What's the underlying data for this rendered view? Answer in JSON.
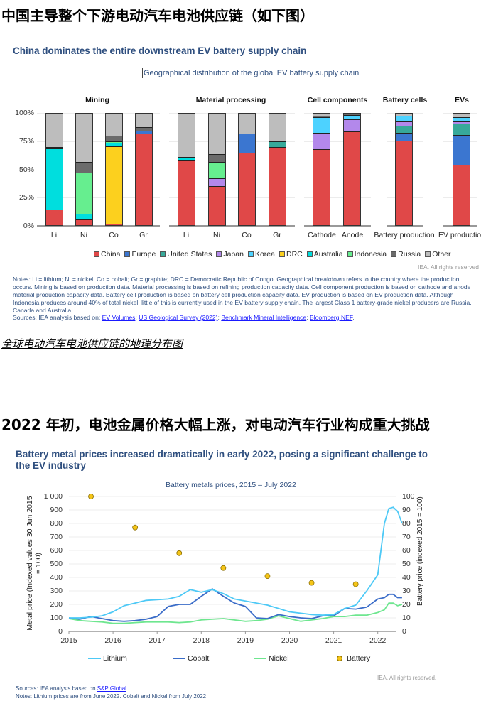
{
  "headings": {
    "section1_cn": "中国主导整个下游电动汽车电池供应链（如下图）",
    "caption1_cn": "全球电动汽车电池供应链的地理分布图",
    "section2_cn": "2022 年初，电池金属价格大幅上涨，对电动汽车行业构成重大挑战"
  },
  "chart1": {
    "title": "China dominates the entire downstream EV battery supply chain",
    "subtitle": "Geographical distribution of the global EV battery supply chain",
    "y_ticks": [
      "100%",
      "75%",
      "50%",
      "25%",
      "0%"
    ],
    "groups": [
      "Mining",
      "Material processing",
      "Cell components",
      "Battery cells",
      "EVs"
    ],
    "legend": [
      {
        "label": "China",
        "color": "#e04848"
      },
      {
        "label": "Europe",
        "color": "#3b76d0"
      },
      {
        "label": "United States",
        "color": "#37a99a"
      },
      {
        "label": "Japan",
        "color": "#b388eb"
      },
      {
        "label": "Korea",
        "color": "#4dd2ff"
      },
      {
        "label": "DRC",
        "color": "#fcd01e"
      },
      {
        "label": "Australia",
        "color": "#00dede"
      },
      {
        "label": "Indonesia",
        "color": "#66ee8f"
      },
      {
        "label": "Russia",
        "color": "#6b6b6b"
      },
      {
        "label": "Other",
        "color": "#bdbdbd"
      }
    ],
    "rights": "IEA. All rights reserved",
    "notes": "Notes: Li = lithium; Ni = nickel; Co = cobalt; Gr = graphite; DRC = Democratic Republic of Congo. Geographical breakdown refers to the country where the production occurs. Mining is based on production data. Material processing is based on refining production capacity data. Cell component production is based on cathode and anode material production capacity data. Battery cell production is based on battery cell production capacity data. EV production is based on EV production data. Although Indonesia produces around 40% of total nickel, little of this is currently used in the EV battery supply chain. The largest Class 1 battery-grade nickel producers are Russia, Canada and Australia.",
    "sources_prefix": "Sources: IEA analysis based on: ",
    "sources_links": [
      "EV Volumes",
      "US Geological Survey (2022)",
      "Benchmark Mineral Intelligence",
      "Bloomberg NEF"
    ]
  },
  "chart2": {
    "title": "Battery metal prices increased dramatically in early 2022, posing a significant challenge to the EV industry",
    "subtitle": "Battery metals prices, 2015 – July 2022",
    "y_left_label": "Metal price (Indexed values 30 Jun 2015 = 100)",
    "y_right_label": "Battery price (indexed 2015 = 100)",
    "y_left_ticks": [
      "1 000",
      "900",
      "800",
      "700",
      "600",
      "500",
      "400",
      "300",
      "200",
      "100",
      "0"
    ],
    "y_right_ticks": [
      "100",
      "90",
      "80",
      "70",
      "60",
      "50",
      "40",
      "30",
      "20",
      "10",
      "0"
    ],
    "x_ticks": [
      "2015",
      "2016",
      "2017",
      "2018",
      "2019",
      "2020",
      "2021",
      "2022"
    ],
    "legend": [
      {
        "label": "Lithium",
        "color": "#4dc9f6"
      },
      {
        "label": "Cobalt",
        "color": "#3a6cc8"
      },
      {
        "label": "Nickel",
        "color": "#6ee68f"
      },
      {
        "label": "Battery",
        "color": "#f5c518"
      }
    ],
    "rights": "IEA. All rights reserved.",
    "sources_prefix": "Sources: IEA analysis based on ",
    "sources_link": "S&P Global",
    "notes": "Notes: Lithium prices are from June 2022. Cobalt and Nickel from July 2022"
  },
  "chart_data": [
    {
      "type": "bar",
      "stacked": true,
      "title": "China dominates the entire downstream EV battery supply chain",
      "subtitle": "Geographical distribution of the global EV battery supply chain",
      "xlabel": "",
      "ylabel": "",
      "ylim": [
        0,
        100
      ],
      "y_unit": "%",
      "grid": true,
      "legend_position": "bottom",
      "groups": [
        {
          "name": "Mining",
          "categories": [
            "Li",
            "Ni",
            "Co",
            "Gr"
          ]
        },
        {
          "name": "Material processing",
          "categories": [
            "Li",
            "Ni",
            "Co",
            "Gr"
          ]
        },
        {
          "name": "Cell components",
          "categories": [
            "Cathode",
            "Anode"
          ]
        },
        {
          "name": "Battery cells",
          "categories": [
            "Battery production"
          ]
        },
        {
          "name": "EVs",
          "categories": [
            "EV production"
          ]
        }
      ],
      "categories": [
        "Mining Li",
        "Mining Ni",
        "Mining Co",
        "Mining Gr",
        "Processing Li",
        "Processing Ni",
        "Processing Co",
        "Processing Gr",
        "Cathode",
        "Anode",
        "Battery production",
        "EV production"
      ],
      "series": [
        {
          "name": "China",
          "color": "#e04848",
          "values": [
            14,
            5,
            1,
            82,
            58,
            35,
            65,
            70,
            68,
            84,
            76,
            54
          ]
        },
        {
          "name": "Europe",
          "color": "#3b76d0",
          "values": [
            0,
            0,
            0,
            3,
            0,
            0,
            17,
            0,
            0,
            0,
            7,
            27
          ]
        },
        {
          "name": "United States",
          "color": "#37a99a",
          "values": [
            0,
            0,
            0,
            0,
            0.5,
            0,
            0,
            5,
            0,
            0,
            6,
            10
          ]
        },
        {
          "name": "Japan",
          "color": "#b388eb",
          "values": [
            0,
            0,
            0,
            0,
            0,
            7,
            0,
            0,
            15,
            11,
            4,
            2
          ]
        },
        {
          "name": "Korea",
          "color": "#4dd2ff",
          "values": [
            0,
            0,
            0,
            0,
            0,
            0,
            0,
            0,
            14,
            4,
            5,
            4
          ]
        },
        {
          "name": "DRC",
          "color": "#fcd01e",
          "values": [
            0,
            0,
            70,
            0,
            0,
            0,
            0,
            0,
            0,
            0,
            0,
            0
          ]
        },
        {
          "name": "Australia",
          "color": "#00dede",
          "values": [
            55,
            5,
            3,
            0,
            2.5,
            0,
            0,
            0,
            0,
            0,
            0,
            0
          ]
        },
        {
          "name": "Indonesia",
          "color": "#66ee8f",
          "values": [
            0,
            37,
            1,
            0,
            0,
            15,
            0,
            0,
            0,
            0,
            0,
            0
          ]
        },
        {
          "name": "Russia",
          "color": "#6b6b6b",
          "values": [
            1,
            10,
            5,
            3,
            0,
            7,
            0,
            0,
            1,
            1,
            0,
            0
          ]
        },
        {
          "name": "Other",
          "color": "#bdbdbd",
          "values": [
            30,
            43,
            20,
            12,
            39,
            36,
            18,
            25,
            2,
            0,
            2,
            3
          ]
        }
      ]
    },
    {
      "type": "line",
      "title": "Battery metal prices increased dramatically in early 2022, posing a significant challenge to the EV industry",
      "subtitle": "Battery metals prices, 2015 – July 2022",
      "xlabel": "",
      "ylabel": "Metal price (Indexed values 30 Jun 2015 = 100)",
      "ylabel_right": "Battery price (indexed 2015 = 100)",
      "ylim": [
        0,
        1000
      ],
      "ylim_right": [
        0,
        100
      ],
      "grid": true,
      "legend_position": "bottom",
      "x": [
        2015.0,
        2015.25,
        2015.5,
        2015.75,
        2016.0,
        2016.25,
        2016.5,
        2016.75,
        2017.0,
        2017.25,
        2017.5,
        2017.75,
        2018.0,
        2018.25,
        2018.5,
        2018.75,
        2019.0,
        2019.25,
        2019.5,
        2019.75,
        2020.0,
        2020.25,
        2020.5,
        2020.75,
        2021.0,
        2021.25,
        2021.5,
        2021.75,
        2022.0,
        2022.15,
        2022.25,
        2022.35,
        2022.45,
        2022.55
      ],
      "series": [
        {
          "name": "Lithium",
          "axis": "left",
          "color": "#4dc9f6",
          "values": [
            100,
            100,
            105,
            115,
            145,
            190,
            210,
            230,
            235,
            240,
            260,
            310,
            290,
            310,
            280,
            240,
            225,
            210,
            195,
            170,
            145,
            135,
            125,
            120,
            125,
            170,
            195,
            300,
            420,
            800,
            910,
            920,
            890,
            800
          ]
        },
        {
          "name": "Cobalt",
          "axis": "left",
          "color": "#3a6cc8",
          "values": [
            100,
            90,
            110,
            95,
            80,
            75,
            80,
            90,
            110,
            185,
            200,
            200,
            260,
            315,
            260,
            210,
            185,
            100,
            95,
            125,
            110,
            100,
            95,
            115,
            115,
            170,
            165,
            180,
            240,
            250,
            275,
            275,
            250,
            250
          ]
        },
        {
          "name": "Nickel",
          "axis": "left",
          "color": "#6ee68f",
          "values": [
            95,
            80,
            75,
            70,
            60,
            60,
            65,
            70,
            70,
            70,
            65,
            70,
            85,
            90,
            95,
            85,
            75,
            80,
            90,
            115,
            95,
            75,
            85,
            95,
            110,
            110,
            120,
            120,
            140,
            160,
            210,
            210,
            190,
            200
          ]
        }
      ],
      "scatter": {
        "name": "Battery",
        "axis": "right",
        "color": "#f5c518",
        "x": [
          2015.5,
          2016.5,
          2017.5,
          2018.5,
          2019.5,
          2020.5,
          2021.5
        ],
        "values": [
          100,
          77,
          58,
          47,
          41,
          36,
          35
        ]
      }
    }
  ]
}
